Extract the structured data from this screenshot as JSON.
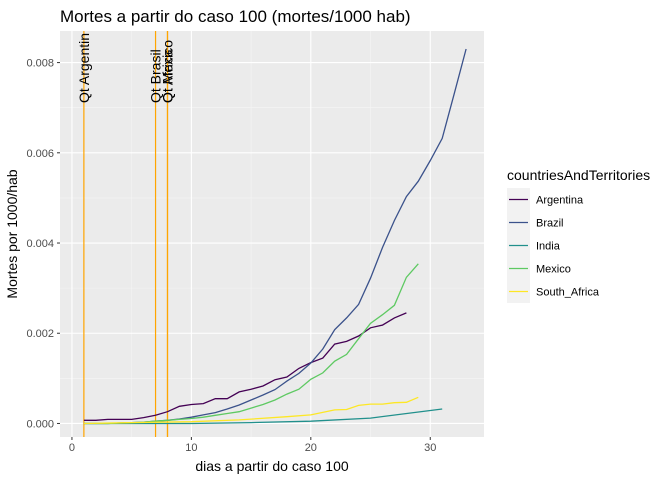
{
  "chart_data": {
    "type": "line",
    "title": "Mortes a partir do caso 100 (mortes/1000 hab)",
    "xlabel": "dias a partir do caso 100",
    "ylabel": "Mortes por 1000/hab",
    "xlim": [
      -1,
      34.5
    ],
    "ylim": [
      -0.0003,
      0.0087
    ],
    "x_ticks": [
      0,
      10,
      20,
      30
    ],
    "x_tick_labels": [
      "0",
      "10",
      "20",
      "30"
    ],
    "y_ticks": [
      0,
      0.002,
      0.004,
      0.006,
      0.008
    ],
    "y_tick_labels": [
      "0.000",
      "0.002",
      "0.004",
      "0.006",
      "0.008"
    ],
    "grid": true,
    "legend": {
      "title": "countriesAndTerritories",
      "position": "right"
    },
    "vlines": [
      {
        "x": 1,
        "label": "Qt Argentin",
        "color": "#ffa500"
      },
      {
        "x": 7,
        "label": "Qt Brasil",
        "color": "#ffa500"
      },
      {
        "x": 8,
        "label": "Qt Africa",
        "color": "#ffa500"
      },
      {
        "x": 8,
        "label": "Qt Mexico",
        "color": "#ffa500"
      }
    ],
    "series": [
      {
        "name": "Argentina",
        "color": "#440154",
        "x": [
          1,
          2,
          3,
          4,
          5,
          6,
          7,
          8,
          9,
          10,
          11,
          12,
          13,
          14,
          15,
          16,
          17,
          18,
          19,
          20,
          21,
          22,
          23,
          24,
          25,
          26,
          27,
          28
        ],
        "y": [
          7e-05,
          7e-05,
          9e-05,
          9e-05,
          9e-05,
          0.00013,
          0.00018,
          0.00026,
          0.00038,
          0.00042,
          0.00044,
          0.00055,
          0.00055,
          0.0007,
          0.00076,
          0.00083,
          0.00097,
          0.00103,
          0.00122,
          0.00135,
          0.00145,
          0.00176,
          0.00182,
          0.00194,
          0.00212,
          0.00218,
          0.00234,
          0.00245
        ]
      },
      {
        "name": "Brazil",
        "color": "#3b528b",
        "x": [
          1,
          2,
          3,
          4,
          5,
          6,
          7,
          8,
          9,
          10,
          11,
          12,
          13,
          14,
          15,
          16,
          17,
          18,
          19,
          20,
          21,
          22,
          23,
          24,
          25,
          26,
          27,
          28,
          29,
          30,
          31,
          32,
          33
        ],
        "y": [
          0.0,
          0.0,
          0.0,
          1e-05,
          2e-05,
          3e-05,
          5e-05,
          7e-05,
          0.0001,
          0.00014,
          0.00019,
          0.00024,
          0.00032,
          0.00041,
          0.00052,
          0.00063,
          0.00075,
          0.00094,
          0.00111,
          0.00134,
          0.00165,
          0.00208,
          0.00234,
          0.00264,
          0.00322,
          0.0039,
          0.0045,
          0.00503,
          0.00537,
          0.00583,
          0.00632,
          0.0073,
          0.0083
        ]
      },
      {
        "name": "India",
        "color": "#21908c",
        "x": [
          1,
          5,
          10,
          15,
          20,
          25,
          31
        ],
        "y": [
          0.0,
          0.0,
          0.0,
          2e-05,
          5e-05,
          0.00012,
          0.00032
        ]
      },
      {
        "name": "Mexico",
        "color": "#5ec962",
        "x": [
          1,
          2,
          3,
          4,
          5,
          6,
          7,
          8,
          9,
          10,
          11,
          12,
          13,
          14,
          15,
          16,
          17,
          18,
          19,
          20,
          21,
          22,
          23,
          24,
          25,
          26,
          27,
          28,
          29
        ],
        "y": [
          0.0,
          0.0,
          0.0,
          1e-05,
          2e-05,
          3e-05,
          5e-05,
          7e-05,
          9e-05,
          0.00011,
          0.00014,
          0.00018,
          0.00022,
          0.00026,
          0.00034,
          0.00042,
          0.00052,
          0.00065,
          0.00076,
          0.00098,
          0.00112,
          0.00138,
          0.00153,
          0.00188,
          0.00222,
          0.00241,
          0.00262,
          0.00324,
          0.00354
        ]
      },
      {
        "name": "South_Africa",
        "color": "#fde725",
        "x": [
          1,
          5,
          10,
          14,
          18,
          20,
          22,
          23,
          24,
          25,
          26,
          27,
          28,
          29
        ],
        "y": [
          0.0,
          2e-05,
          4e-05,
          8e-05,
          0.00015,
          0.00019,
          0.0003,
          0.00031,
          0.0004,
          0.00043,
          0.00043,
          0.00046,
          0.00047,
          0.00058
        ]
      }
    ]
  }
}
